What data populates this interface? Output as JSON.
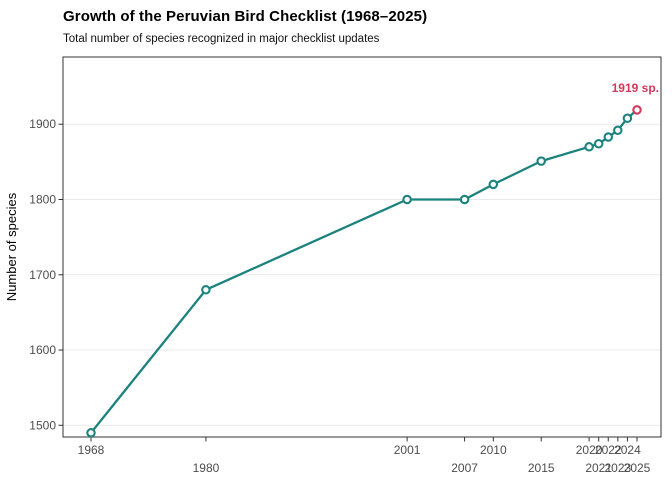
{
  "header": {
    "title": "Growth of the Peruvian Bird Checklist (1968–2025)",
    "subtitle": "Total number of species recognized in major checklist updates"
  },
  "chart_data": {
    "type": "line",
    "title": "Growth of the Peruvian Bird Checklist (1968–2025)",
    "subtitle": "Total number of species recognized in major checklist updates",
    "x": [
      1968,
      1980,
      2001,
      2007,
      2010,
      2015,
      2020,
      2021,
      2022,
      2023,
      2024,
      2025
    ],
    "values": [
      1490,
      1680,
      1800,
      1800,
      1820,
      1851,
      1870,
      1874,
      1883,
      1892,
      1908,
      1919
    ],
    "xlabel": "",
    "ylabel": "Number of species",
    "xticks": [
      1968,
      1980,
      2001,
      2007,
      2010,
      2015,
      2020,
      2021,
      2022,
      2023,
      2024,
      2025
    ],
    "yticks": [
      1500,
      1600,
      1700,
      1800,
      1900
    ],
    "xlim": [
      1965,
      2027.5
    ],
    "ylim": [
      1484,
      1990
    ],
    "grid": "horizontal-major",
    "legend": "none",
    "marker": "open-circle",
    "annotation": {
      "text": "1919 sp.",
      "x": 2025,
      "y": 1919
    },
    "colors": {
      "line": "#1b827d",
      "point_stroke": "#1b827d",
      "point_fill": "#ffffff",
      "highlight": "#d1395b",
      "grid": "#e9e9e9",
      "panel_border": "#333333",
      "tick": "#333333",
      "tick_text": "#4d4d4d"
    }
  }
}
